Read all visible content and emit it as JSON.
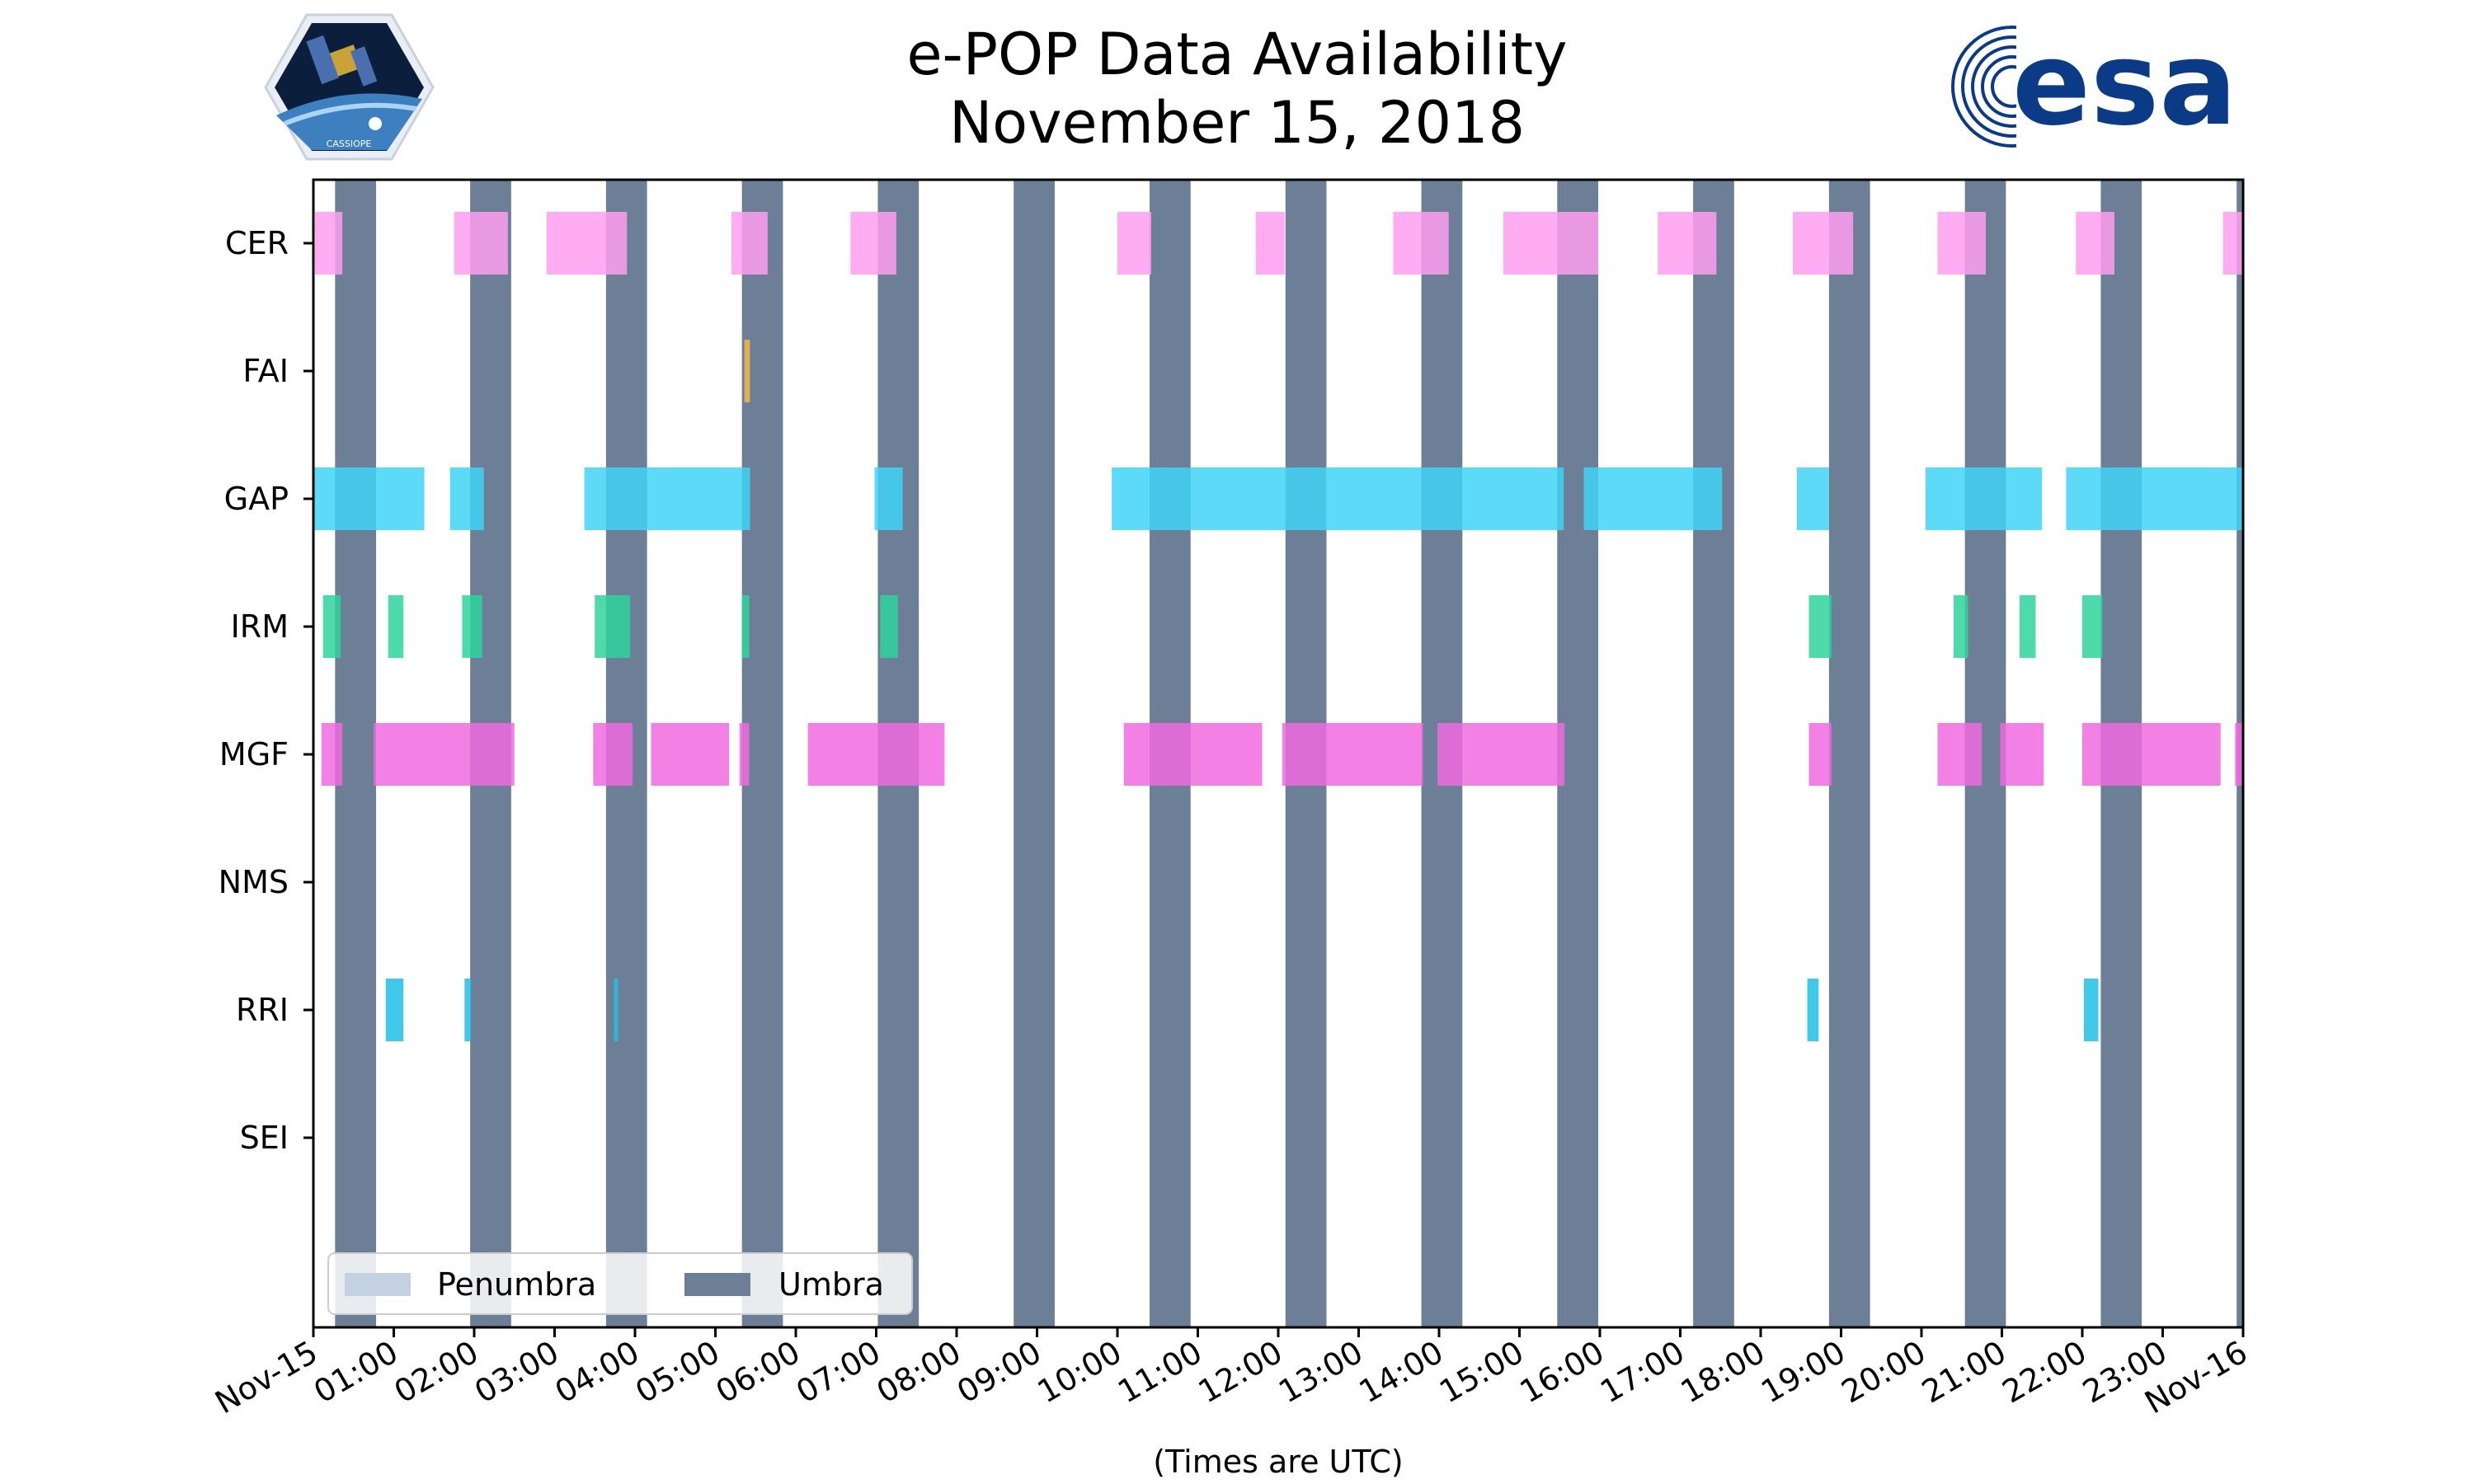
{
  "chart_data": {
    "type": "timeline",
    "title_line1": "e-POP Data Availability",
    "title_line2": "November 15, 2018",
    "xlabel": "(Times are UTC)",
    "x_range_hours": [
      0,
      24
    ],
    "x_ticks": [
      "Nov-15",
      "01:00",
      "02:00",
      "03:00",
      "04:00",
      "05:00",
      "06:00",
      "07:00",
      "08:00",
      "09:00",
      "10:00",
      "11:00",
      "12:00",
      "13:00",
      "14:00",
      "15:00",
      "16:00",
      "17:00",
      "18:00",
      "19:00",
      "20:00",
      "21:00",
      "22:00",
      "23:00",
      "Nov-16"
    ],
    "categories": [
      "CER",
      "FAI",
      "GAP",
      "IRM",
      "MGF",
      "NMS",
      "RRI",
      "SEI"
    ],
    "colors": {
      "CER": "#ff9ef0",
      "FAI": "#f2b84b",
      "GAP": "#40d4f7",
      "IRM": "#2fd49c",
      "MGF": "#f06ae0",
      "NMS": "#999999",
      "RRI": "#20c0e8",
      "SEI": "#999999",
      "umbra": "#6c7f96",
      "penumbra": "#c4d1e2"
    },
    "legend": [
      {
        "name": "Penumbra",
        "color": "#c4d1e2"
      },
      {
        "name": "Umbra",
        "color": "#6c7f96"
      }
    ],
    "legend_position": "lower-left",
    "umbra": [
      [
        0.27,
        0.78
      ],
      [
        1.95,
        2.46
      ],
      [
        3.64,
        4.15
      ],
      [
        5.33,
        5.84
      ],
      [
        7.02,
        7.53
      ],
      [
        8.71,
        9.22
      ],
      [
        10.4,
        10.91
      ],
      [
        12.09,
        12.6
      ],
      [
        13.78,
        14.29
      ],
      [
        15.47,
        15.98
      ],
      [
        17.16,
        17.67
      ],
      [
        18.85,
        19.36
      ],
      [
        20.54,
        21.05
      ],
      [
        22.23,
        22.74
      ],
      [
        23.92,
        24.0
      ]
    ],
    "series": [
      {
        "name": "CER",
        "intervals": [
          [
            0.02,
            0.36
          ],
          [
            1.75,
            2.42
          ],
          [
            2.9,
            3.9
          ],
          [
            5.2,
            5.65
          ],
          [
            6.68,
            7.25
          ],
          [
            10.0,
            10.42
          ],
          [
            11.72,
            12.08
          ],
          [
            13.43,
            14.12
          ],
          [
            14.8,
            15.98
          ],
          [
            16.72,
            17.45
          ],
          [
            18.4,
            19.15
          ],
          [
            20.2,
            20.8
          ],
          [
            21.92,
            22.4
          ],
          [
            23.75,
            24.0
          ]
        ]
      },
      {
        "name": "FAI",
        "intervals": [
          [
            5.36,
            5.43
          ]
        ]
      },
      {
        "name": "GAP",
        "intervals": [
          [
            0.0,
            1.38
          ],
          [
            1.7,
            2.12
          ],
          [
            3.37,
            5.43
          ],
          [
            6.98,
            7.33
          ],
          [
            9.93,
            15.55
          ],
          [
            15.8,
            17.52
          ],
          [
            18.45,
            18.85
          ],
          [
            20.05,
            21.5
          ],
          [
            21.8,
            24.0
          ]
        ]
      },
      {
        "name": "IRM",
        "intervals": [
          [
            0.12,
            0.34
          ],
          [
            0.93,
            1.12
          ],
          [
            1.85,
            2.1
          ],
          [
            3.5,
            3.94
          ],
          [
            5.33,
            5.42
          ],
          [
            7.05,
            7.27
          ],
          [
            18.6,
            18.88
          ],
          [
            20.4,
            20.58
          ],
          [
            21.22,
            21.42
          ],
          [
            22.0,
            22.25
          ]
        ]
      },
      {
        "name": "MGF",
        "intervals": [
          [
            0.1,
            0.36
          ],
          [
            0.75,
            2.5
          ],
          [
            3.48,
            3.97
          ],
          [
            4.2,
            5.17
          ],
          [
            5.3,
            5.42
          ],
          [
            6.15,
            7.85
          ],
          [
            10.08,
            11.8
          ],
          [
            12.05,
            13.8
          ],
          [
            13.98,
            15.56
          ],
          [
            18.6,
            18.88
          ],
          [
            20.2,
            20.75
          ],
          [
            20.98,
            21.52
          ],
          [
            22.0,
            23.72
          ],
          [
            23.9,
            24.0
          ]
        ]
      },
      {
        "name": "NMS",
        "intervals": []
      },
      {
        "name": "RRI",
        "intervals": [
          [
            0.9,
            1.12
          ],
          [
            1.88,
            1.96
          ],
          [
            3.74,
            3.79
          ],
          [
            18.58,
            18.72
          ],
          [
            22.02,
            22.2
          ]
        ]
      },
      {
        "name": "SEI",
        "intervals": []
      }
    ]
  },
  "logos": {
    "left_logo_text": "CASSIOPE",
    "right_logo_text": "esa"
  }
}
